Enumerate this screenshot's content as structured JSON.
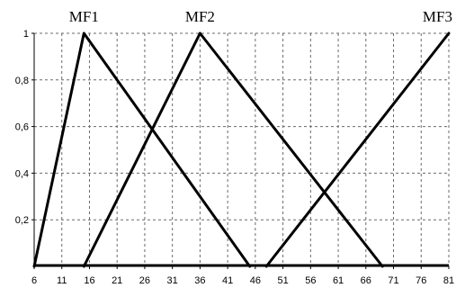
{
  "chart_data": {
    "type": "line",
    "title": "",
    "xlabel": "",
    "ylabel": "",
    "xlim": [
      6,
      81
    ],
    "ylim": [
      0,
      1
    ],
    "x_ticks": [
      "6",
      "11",
      "16",
      "21",
      "26",
      "31",
      "36",
      "41",
      "46",
      "51",
      "56",
      "61",
      "66",
      "71",
      "76",
      "81"
    ],
    "y_ticks": [
      "0,2",
      "0,4",
      "0,6",
      "0,8",
      "1"
    ],
    "grid": true,
    "series": [
      {
        "name": "MF1",
        "x": [
          6,
          15,
          45
        ],
        "y": [
          0,
          1,
          0
        ]
      },
      {
        "name": "MF2",
        "x": [
          15,
          36,
          69
        ],
        "y": [
          0,
          1,
          0
        ]
      },
      {
        "name": "MF3",
        "x": [
          48,
          81
        ],
        "y": [
          0,
          1
        ]
      }
    ]
  }
}
